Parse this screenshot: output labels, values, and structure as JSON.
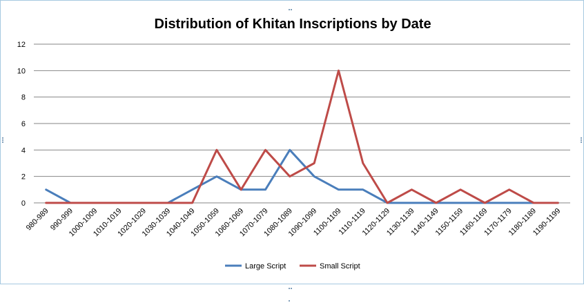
{
  "chart_data": {
    "type": "line",
    "title": "Distribution of Khitan Inscriptions by Date",
    "xlabel": "",
    "ylabel": "",
    "ylim": [
      0,
      12
    ],
    "yticks": [
      0,
      2,
      4,
      6,
      8,
      10,
      12
    ],
    "grid": true,
    "legend_position": "bottom",
    "categories": [
      "980-989",
      "990-999",
      "1000-1009",
      "1010-1019",
      "1020-1029",
      "1030-1039",
      "1040-1049",
      "1050-1059",
      "1060-1069",
      "1070-1079",
      "1080-1089",
      "1090-1099",
      "1100-1109",
      "1110-1119",
      "1120-1129",
      "1130-1139",
      "1140-1149",
      "1150-1159",
      "1160-1169",
      "1170-1179",
      "1180-1189",
      "1190-1199"
    ],
    "series": [
      {
        "name": "Large Script",
        "color": "#4a7ebb",
        "values": [
          1,
          0,
          0,
          0,
          0,
          0,
          1,
          2,
          1,
          1,
          4,
          2,
          1,
          1,
          0,
          0,
          0,
          0,
          0,
          0,
          0,
          0
        ]
      },
      {
        "name": "Small Script",
        "color": "#be4b48",
        "values": [
          0,
          0,
          0,
          0,
          0,
          0,
          0,
          4,
          1,
          4,
          2,
          3,
          10,
          3,
          0,
          1,
          0,
          1,
          0,
          1,
          0,
          0
        ]
      }
    ]
  }
}
